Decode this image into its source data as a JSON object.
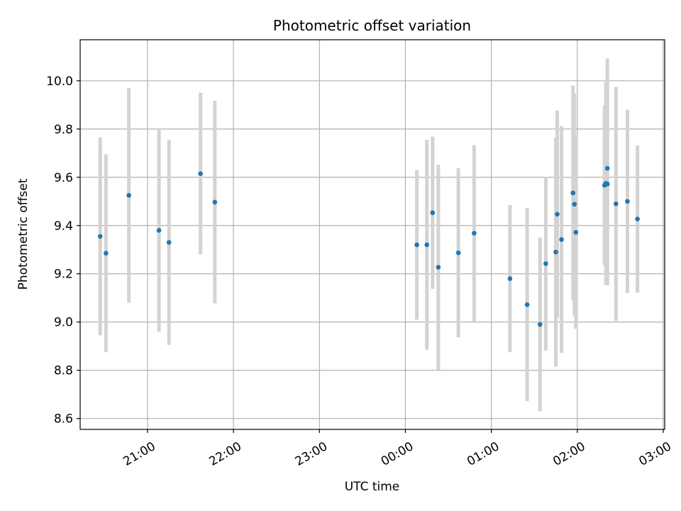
{
  "chart_data": {
    "type": "scatter",
    "title": "Photometric offset variation",
    "xlabel": "UTC time",
    "ylabel": "Photometric offset",
    "x_ticks": [
      "21:00",
      "22:00",
      "23:00",
      "00:00",
      "01:00",
      "02:00",
      "03:00"
    ],
    "y_ticks": [
      "8.6",
      "8.8",
      "9.0",
      "9.2",
      "9.4",
      "9.6",
      "9.8",
      "10.0"
    ],
    "xlim": [
      "20:13",
      "03:01"
    ],
    "ylim": [
      8.555,
      10.17
    ],
    "grid": true,
    "errorbar_color": "#d3d3d3",
    "point_color": "#1f77b4",
    "points": [
      {
        "x": "20:27",
        "y": 9.355,
        "err": 0.41
      },
      {
        "x": "20:31",
        "y": 9.285,
        "err": 0.41
      },
      {
        "x": "20:47",
        "y": 9.525,
        "err": 0.445
      },
      {
        "x": "21:08",
        "y": 9.38,
        "err": 0.42
      },
      {
        "x": "21:15",
        "y": 9.33,
        "err": 0.425
      },
      {
        "x": "21:37",
        "y": 9.615,
        "err": 0.335
      },
      {
        "x": "21:47",
        "y": 9.497,
        "err": 0.42
      },
      {
        "x": "00:08",
        "y": 9.32,
        "err": 0.31
      },
      {
        "x": "00:15",
        "y": 9.32,
        "err": 0.435
      },
      {
        "x": "00:19",
        "y": 9.453,
        "err": 0.315
      },
      {
        "x": "00:23",
        "y": 9.227,
        "err": 0.425
      },
      {
        "x": "00:37",
        "y": 9.287,
        "err": 0.35
      },
      {
        "x": "00:48",
        "y": 9.368,
        "err": 0.365
      },
      {
        "x": "01:13",
        "y": 9.18,
        "err": 0.305
      },
      {
        "x": "01:25",
        "y": 9.072,
        "err": 0.4
      },
      {
        "x": "01:34",
        "y": 8.99,
        "err": 0.36
      },
      {
        "x": "01:38",
        "y": 9.242,
        "err": 0.36
      },
      {
        "x": "01:45",
        "y": 9.29,
        "err": 0.475
      },
      {
        "x": "01:46",
        "y": 9.447,
        "err": 0.43
      },
      {
        "x": "01:49",
        "y": 9.342,
        "err": 0.47
      },
      {
        "x": "01:57",
        "y": 9.535,
        "err": 0.445
      },
      {
        "x": "01:58",
        "y": 9.488,
        "err": 0.46
      },
      {
        "x": "01:59",
        "y": 9.372,
        "err": 0.4
      },
      {
        "x": "02:19",
        "y": 9.567,
        "err": 0.33
      },
      {
        "x": "02:20",
        "y": 9.575,
        "err": 0.42
      },
      {
        "x": "02:21",
        "y": 9.572,
        "err": 0.42
      },
      {
        "x": "02:21",
        "y": 9.637,
        "err": 0.455
      },
      {
        "x": "02:27",
        "y": 9.49,
        "err": 0.485
      },
      {
        "x": "02:35",
        "y": 9.5,
        "err": 0.38
      },
      {
        "x": "02:42",
        "y": 9.427,
        "err": 0.305
      }
    ]
  }
}
